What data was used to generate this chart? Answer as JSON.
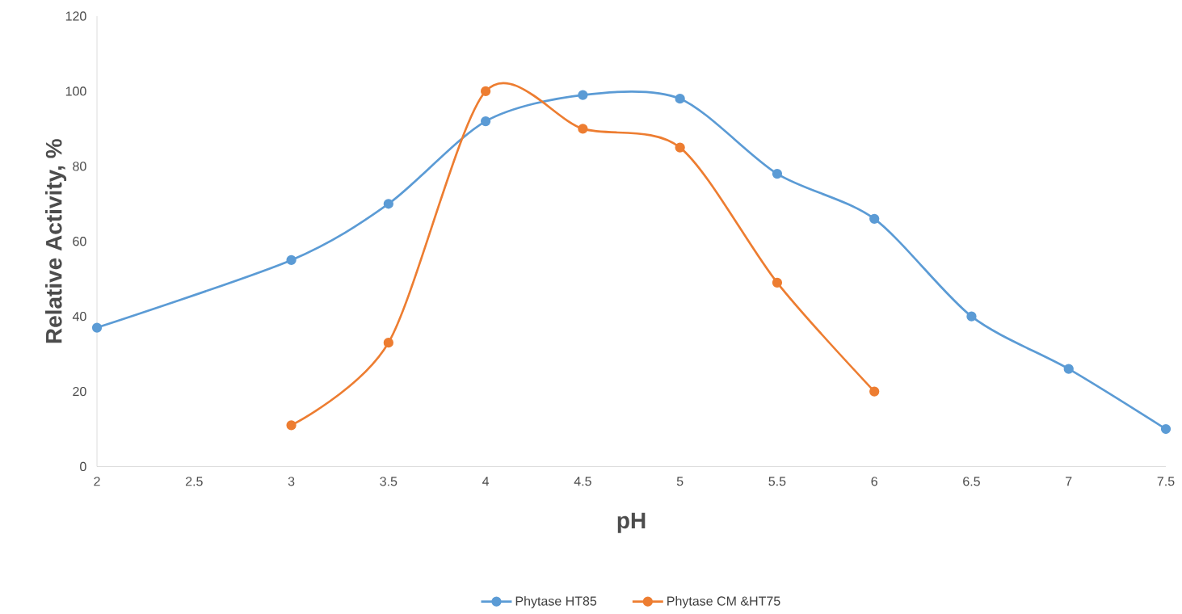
{
  "chart_data": {
    "type": "line",
    "xlabel": "pH",
    "ylabel": "Relative Activity, %",
    "xlim": [
      2,
      7.5
    ],
    "xticks": [
      2,
      2.5,
      3,
      3.5,
      4,
      4.5,
      5,
      5.5,
      6,
      6.5,
      7,
      7.5
    ],
    "ylim": [
      0,
      120
    ],
    "yticks": [
      0,
      20,
      40,
      60,
      80,
      100,
      120
    ],
    "grid": false,
    "legend": "bottom",
    "marker": "circle",
    "line_style": "solid",
    "series": [
      {
        "name": "Phytase HT85",
        "color": "#5b9bd5",
        "x": [
          2,
          3,
          3.5,
          4,
          4.5,
          5,
          5.5,
          6,
          6.5,
          7,
          7.5
        ],
        "values": [
          37,
          55,
          70,
          92,
          99,
          98,
          78,
          66,
          40,
          26,
          10
        ]
      },
      {
        "name": "Phytase CM &HT75",
        "color": "#ed7d31",
        "x": [
          3,
          3.5,
          4,
          4.5,
          5,
          5.5,
          6
        ],
        "values": [
          11,
          33,
          100,
          90,
          85,
          49,
          20
        ]
      }
    ]
  }
}
